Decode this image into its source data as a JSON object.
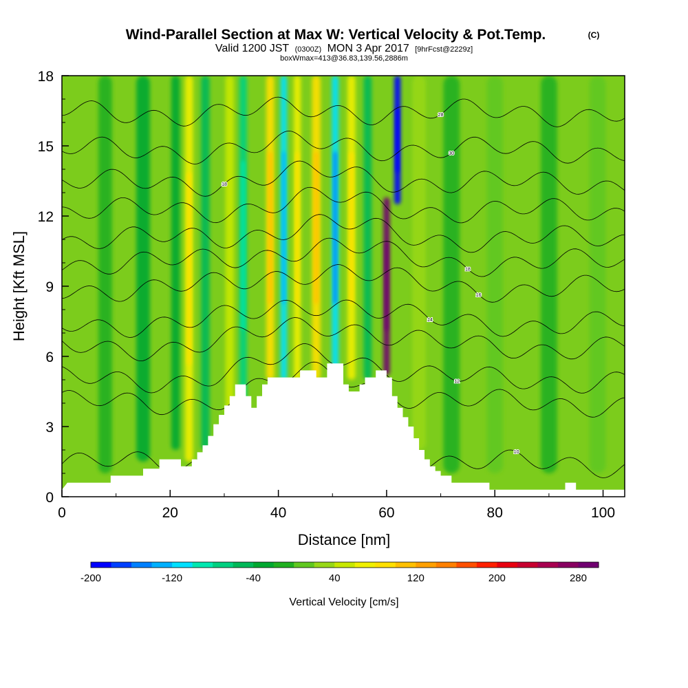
{
  "header": {
    "title_main": "Wind-Parallel Section at Max W: Vertical Velocity & Pot.Temp.",
    "title_copyright": "(C)",
    "valid_prefix": "Valid 1200 JST",
    "valid_utc": "(0300Z)",
    "valid_date": "MON 3 Apr 2017",
    "forecast": "[9hrFcst@2229z]",
    "box_info": "boxWmax=413@36.83,139.56,2886m"
  },
  "chart_data": {
    "type": "heatmap",
    "xlabel": "Distance [nm]",
    "ylabel": "Height [Kft MSL]",
    "xlim": [
      0,
      104
    ],
    "ylim": [
      0,
      18
    ],
    "x_ticks": [
      "0",
      "20",
      "40",
      "60",
      "80",
      "100"
    ],
    "y_ticks": [
      "0",
      "3",
      "6",
      "9",
      "12",
      "15",
      "18"
    ],
    "colorbar": {
      "label": "Vertical Velocity [cm/s]",
      "tick_labels": [
        "-200",
        "-120",
        "-40",
        "40",
        "120",
        "200",
        "280"
      ],
      "tick_values": [
        -200,
        -120,
        -40,
        40,
        120,
        200,
        280
      ],
      "range": [
        -200,
        300
      ],
      "colors": [
        "#0000ff",
        "#0040ff",
        "#0080ff",
        "#00b0ff",
        "#00e0ff",
        "#00e8b0",
        "#00d080",
        "#00b858",
        "#00a830",
        "#20b020",
        "#60c820",
        "#98d818",
        "#c8e800",
        "#f0f000",
        "#ffe000",
        "#ffc000",
        "#ffa000",
        "#ff8000",
        "#ff5000",
        "#ff2000",
        "#e80010",
        "#c80030",
        "#a80050",
        "#880060",
        "#700070"
      ]
    },
    "terrain_profile": [
      [
        0,
        0.3
      ],
      [
        1,
        0.6
      ],
      [
        9,
        0.6
      ],
      [
        9,
        0.9
      ],
      [
        15,
        0.9
      ],
      [
        15,
        1.2
      ],
      [
        18,
        1.2
      ],
      [
        18,
        1.6
      ],
      [
        22,
        1.6
      ],
      [
        22,
        1.3
      ],
      [
        24,
        1.3
      ],
      [
        24,
        1.6
      ],
      [
        25,
        1.6
      ],
      [
        25,
        1.9
      ],
      [
        26,
        1.9
      ],
      [
        26,
        2.2
      ],
      [
        27,
        2.2
      ],
      [
        27,
        2.6
      ],
      [
        28,
        2.6
      ],
      [
        28,
        3.1
      ],
      [
        29,
        3.1
      ],
      [
        29,
        3.5
      ],
      [
        30,
        3.5
      ],
      [
        30,
        3.9
      ],
      [
        31,
        3.9
      ],
      [
        31,
        4.3
      ],
      [
        32,
        4.3
      ],
      [
        32,
        4.8
      ],
      [
        34,
        4.8
      ],
      [
        34,
        4.3
      ],
      [
        35,
        4.3
      ],
      [
        35,
        3.8
      ],
      [
        36,
        3.8
      ],
      [
        36,
        4.3
      ],
      [
        37,
        4.3
      ],
      [
        37,
        4.8
      ],
      [
        38,
        4.8
      ],
      [
        38,
        5.1
      ],
      [
        44,
        5.1
      ],
      [
        44,
        5.4
      ],
      [
        47,
        5.4
      ],
      [
        47,
        5.1
      ],
      [
        49,
        5.1
      ],
      [
        49,
        5.7
      ],
      [
        52,
        5.7
      ],
      [
        52,
        4.8
      ],
      [
        53,
        4.8
      ],
      [
        53,
        4.5
      ],
      [
        55,
        4.5
      ],
      [
        55,
        4.8
      ],
      [
        56,
        4.8
      ],
      [
        56,
        5.1
      ],
      [
        58,
        5.1
      ],
      [
        58,
        5.4
      ],
      [
        60,
        5.4
      ],
      [
        60,
        5.1
      ],
      [
        61,
        5.1
      ],
      [
        61,
        4.3
      ],
      [
        62,
        4.3
      ],
      [
        62,
        3.8
      ],
      [
        63,
        3.8
      ],
      [
        63,
        3.4
      ],
      [
        64,
        3.4
      ],
      [
        64,
        3.0
      ],
      [
        65,
        3.0
      ],
      [
        65,
        2.5
      ],
      [
        66,
        2.5
      ],
      [
        66,
        2.0
      ],
      [
        67,
        2.0
      ],
      [
        67,
        1.6
      ],
      [
        68,
        1.6
      ],
      [
        68,
        1.3
      ],
      [
        69,
        1.3
      ],
      [
        69,
        1.1
      ],
      [
        70,
        1.1
      ],
      [
        70,
        0.9
      ],
      [
        72,
        0.9
      ],
      [
        72,
        0.6
      ],
      [
        79,
        0.6
      ],
      [
        79,
        0.3
      ],
      [
        93,
        0.3
      ],
      [
        93,
        0.6
      ],
      [
        95,
        0.6
      ],
      [
        95,
        0.3
      ],
      [
        104,
        0.3
      ]
    ],
    "bands": [
      {
        "x": 8,
        "from": 1,
        "to": 18,
        "width": 2.5,
        "w": -15
      },
      {
        "x": 15,
        "from": 1.5,
        "to": 18,
        "width": 2.5,
        "w": -25
      },
      {
        "x": 21,
        "from": 2,
        "to": 18,
        "width": 1.6,
        "w": -40
      },
      {
        "x": 23.5,
        "from": 1.5,
        "to": 18,
        "width": 1.5,
        "w": 70
      },
      {
        "x": 26.5,
        "from": 2,
        "to": 18,
        "width": 1.6,
        "w": -60
      },
      {
        "x": 31,
        "from": 3.5,
        "to": 18,
        "width": 1.6,
        "w": 55
      },
      {
        "x": 33.5,
        "from": 3.5,
        "to": 18,
        "width": 1.4,
        "w": -75
      },
      {
        "x": 38.5,
        "from": 5,
        "to": 18,
        "width": 1.5,
        "w": 80
      },
      {
        "x": 41,
        "from": 5,
        "to": 18,
        "width": 1.2,
        "w": -110
      },
      {
        "x": 43.5,
        "from": 5,
        "to": 18,
        "width": 1.3,
        "w": 75
      },
      {
        "x": 47,
        "from": 5,
        "to": 18,
        "width": 1.6,
        "w": 95
      },
      {
        "x": 50.5,
        "from": 5,
        "to": 18,
        "width": 1.3,
        "w": -115
      },
      {
        "x": 53.5,
        "from": 5,
        "to": 18,
        "width": 1.5,
        "w": 75
      },
      {
        "x": 56.5,
        "from": 5,
        "to": 18,
        "width": 1.5,
        "w": -45
      },
      {
        "x": 60,
        "from": 5.2,
        "to": 12.8,
        "width": 1.2,
        "w": 290
      },
      {
        "x": 62,
        "from": 12.5,
        "to": 18,
        "width": 1.2,
        "w": -200
      },
      {
        "x": 66,
        "from": 2,
        "to": 18,
        "width": 2.5,
        "w": 30
      },
      {
        "x": 72,
        "from": 1,
        "to": 18,
        "width": 3,
        "w": -20
      },
      {
        "x": 80,
        "from": 1,
        "to": 18,
        "width": 3,
        "w": 15
      },
      {
        "x": 90,
        "from": 1,
        "to": 18,
        "width": 3,
        "w": -15
      },
      {
        "x": 99,
        "from": 1,
        "to": 18,
        "width": 3,
        "w": 10
      }
    ],
    "theta_contours": [
      {
        "base": 1.4,
        "label": "10",
        "label_x": 84
      },
      {
        "base": 4.0,
        "label": "",
        "label_x": 0
      },
      {
        "base": 5.0,
        "label": "12",
        "label_x": 73
      },
      {
        "base": 6.4,
        "label": "",
        "label_x": 0
      },
      {
        "base": 7.4,
        "label": "14",
        "label_x": 68
      },
      {
        "base": 8.9,
        "label": "16",
        "label_x": 77
      },
      {
        "base": 10.0,
        "label": "18",
        "label_x": 75
      },
      {
        "base": 11.0,
        "label": "",
        "label_x": 0
      },
      {
        "base": 12.2,
        "label": "",
        "label_x": 0
      },
      {
        "base": 13.4,
        "label": "18",
        "label_x": 30
      },
      {
        "base": 14.8,
        "label": "30",
        "label_x": 72
      },
      {
        "base": 16.4,
        "label": "28",
        "label_x": 70
      }
    ]
  }
}
